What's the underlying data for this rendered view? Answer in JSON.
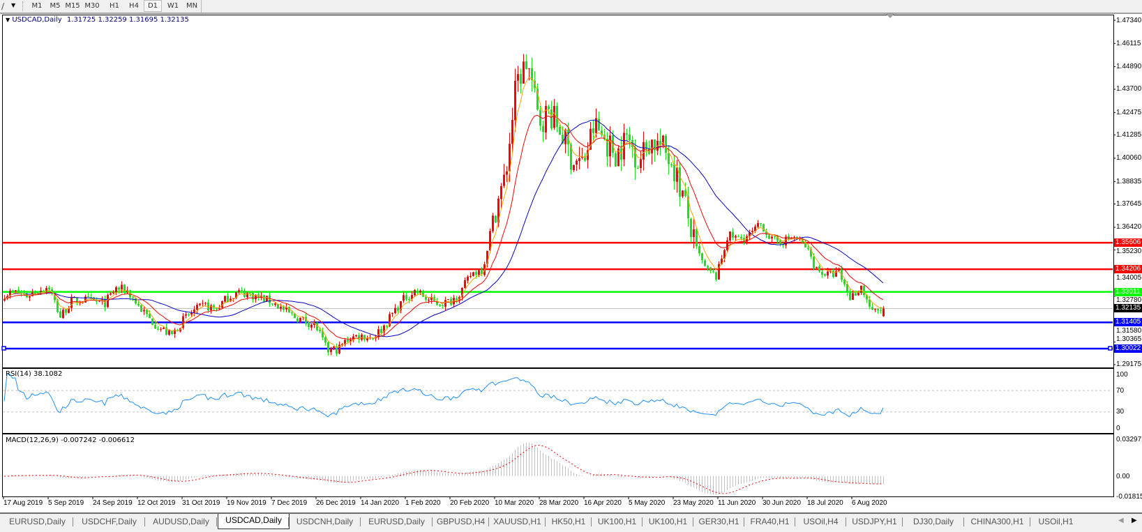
{
  "toolbar": {
    "tool_icon": "line-tool-icon",
    "periods": [
      "M1",
      "M5",
      "M15",
      "M30",
      "H1",
      "H4",
      "D1",
      "W1",
      "MN"
    ],
    "active_period": "D1"
  },
  "chart": {
    "symbol_label": "USDCAD,Daily",
    "ohlc_text": "1.31725 1.32259 1.31695 1.32135"
  },
  "chart_data": {
    "type": "candlestick",
    "symbol": "USDCAD",
    "timeframe": "Daily",
    "last_bar": {
      "open": 1.31725,
      "high": 1.32259,
      "low": 1.31695,
      "close": 1.32135
    },
    "closes_approx": [
      1.329,
      1.33,
      1.328,
      1.331,
      1.333,
      1.317,
      1.325,
      1.326,
      1.325,
      1.324,
      1.332,
      1.331,
      1.323,
      1.316,
      1.311,
      1.307,
      1.315,
      1.32,
      1.323,
      1.321,
      1.327,
      1.33,
      1.329,
      1.327,
      1.325,
      1.321,
      1.317,
      1.315,
      1.312,
      1.299,
      1.3,
      1.306,
      1.307,
      1.306,
      1.311,
      1.32,
      1.327,
      1.331,
      1.326,
      1.324,
      1.325,
      1.33,
      1.34,
      1.342,
      1.372,
      1.39,
      1.44,
      1.452,
      1.42,
      1.425,
      1.415,
      1.4,
      1.398,
      1.418,
      1.41,
      1.403,
      1.412,
      1.399,
      1.41,
      1.407,
      1.399,
      1.38,
      1.355,
      1.342,
      1.338,
      1.36,
      1.358,
      1.36,
      1.366,
      1.357,
      1.357,
      1.359,
      1.354,
      1.342,
      1.339,
      1.34,
      1.327,
      1.333,
      1.319,
      1.3213
    ],
    "x_tick_labels": [
      "17 Aug 2019",
      "5 Sep 2019",
      "24 Sep 2019",
      "12 Oct 2019",
      "31 Oct 2019",
      "19 Nov 2019",
      "7 Dec 2019",
      "26 Dec 2019",
      "14 Jan 2020",
      "1 Feb 2020",
      "20 Feb 2020",
      "10 Mar 2020",
      "28 Mar 2020",
      "16 Apr 2020",
      "5 May 2020",
      "23 May 2020",
      "11 Jun 2020",
      "30 Jun 2020",
      "18 Jul 2020",
      "6 Aug 2020"
    ],
    "y_tick_labels": [
      "1.47340",
      "1.46115",
      "1.44890",
      "1.43700",
      "1.42475",
      "1.41285",
      "1.40060",
      "1.38835",
      "1.37645",
      "1.36420",
      "1.35230",
      "1.34005",
      "1.32780",
      "1.31580",
      "1.30365",
      "1.29175"
    ],
    "ylim": [
      1.29175,
      1.4734
    ],
    "grid": false,
    "horizontal_lines": [
      {
        "price": "1.35606",
        "color": "#ff0000",
        "label_bg": "#ff0000"
      },
      {
        "price": "1.34206",
        "color": "#ff0000",
        "label_bg": "#ff0000"
      },
      {
        "price": "1.33011",
        "color": "#00ff00",
        "label_bg": "#00ff00"
      },
      {
        "price": "1.32135",
        "color": "#c0c0c0",
        "label_bg": "#000000"
      },
      {
        "price": "1.31405",
        "color": "#0000ff",
        "label_bg": "#0000ff"
      },
      {
        "price": "1.30022",
        "color": "#0000ff",
        "label_bg": "#0000ff"
      }
    ],
    "colors": {
      "bull": "#ff0000",
      "bear": "#1ee01e",
      "ma_fast": "#ffa500",
      "ma_mid": "#ff0000",
      "ma_slow": "#0000c8",
      "rsi": "#1e90ff",
      "macd_hist": "#c0c0c0",
      "macd_signal": "#ff0000"
    },
    "rsi": {
      "label": "RSI(14) 38.1082",
      "value": 38.1082,
      "axis_labels": [
        "100",
        "70",
        "30",
        "0"
      ],
      "levels": [
        70,
        30
      ]
    },
    "macd": {
      "label": "MACD(12,26,9) -0.007242 -0.006612",
      "main": -0.007242,
      "signal": -0.006612,
      "axis_labels": [
        "0.032972",
        "0.00",
        "-0.01815"
      ]
    }
  },
  "tabs": [
    "EURUSD,Daily",
    "USDCHF,Daily",
    "AUDUSD,Daily",
    "USDCAD,Daily",
    "USDCNH,Daily",
    "EURUSD,Daily",
    "GBPUSD,H4",
    "XAUUSD,H1",
    "HK50,H1",
    "UK100,H1",
    "UK100,H1",
    "GER30,H1",
    "FRA40,H1",
    "USOil,H4",
    "USDJPY,H1",
    "DJ30,Daily",
    "CHINA300,H1",
    "USOil,H1"
  ],
  "active_tab": "USDCAD,Daily"
}
